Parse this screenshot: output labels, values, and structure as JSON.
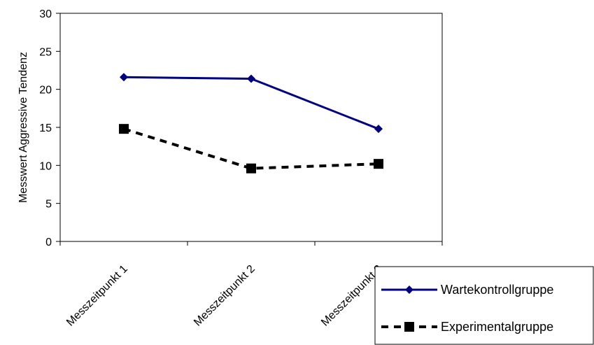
{
  "chart_data": {
    "type": "line",
    "title": "",
    "xlabel": "",
    "ylabel": "Messwert Aggressive Tendenz",
    "categories": [
      "Messzeitpunkt 1",
      "Messzeitpunkt 2",
      "Messzeitpunkt 3"
    ],
    "ylim": [
      0,
      30
    ],
    "yticks": [
      "0",
      "5",
      "10",
      "15",
      "20",
      "25",
      "30"
    ],
    "grid": false,
    "legend_position": "bottom-right",
    "series": [
      {
        "name": "Wartekontrollgruppe",
        "values": [
          21.6,
          21.4,
          14.8
        ],
        "color": "#000080",
        "line_style": "solid",
        "marker": "diamond"
      },
      {
        "name": "Experimentalgruppe",
        "values": [
          14.8,
          9.6,
          10.2
        ],
        "color": "#000000",
        "line_style": "dashed",
        "marker": "square"
      }
    ]
  }
}
